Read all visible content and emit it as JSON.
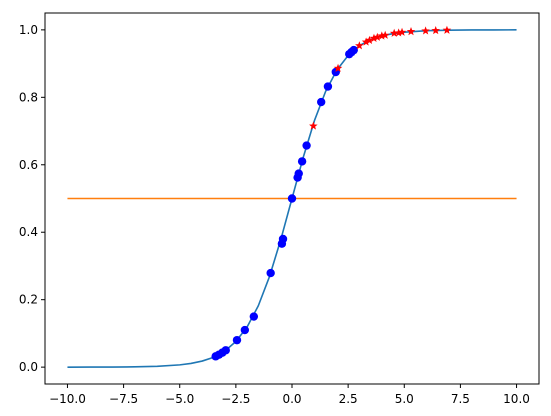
{
  "chart_data": {
    "type": "line",
    "title": "",
    "xlabel": "",
    "ylabel": "",
    "xlim": [
      -11.0,
      11.0
    ],
    "ylim": [
      -0.05,
      1.05
    ],
    "x_ticks": [
      -10.0,
      -7.5,
      -5.0,
      -2.5,
      0.0,
      2.5,
      5.0,
      7.5,
      10.0
    ],
    "x_tick_labels": [
      "−10.0",
      "−7.5",
      "−5.0",
      "−2.5",
      "0.0",
      "2.5",
      "5.0",
      "7.5",
      "10.0"
    ],
    "y_ticks": [
      0.0,
      0.2,
      0.4,
      0.6,
      0.8,
      1.0
    ],
    "y_tick_labels": [
      "0.0",
      "0.2",
      "0.4",
      "0.6",
      "0.8",
      "1.0"
    ],
    "grid": false,
    "legend": "none",
    "series": [
      {
        "kind": "line",
        "color": "#1f77b4",
        "x": [
          -10,
          -9,
          -8,
          -7,
          -6,
          -5,
          -4.5,
          -4,
          -3.5,
          -3,
          -2.5,
          -2,
          -1.5,
          -1,
          -0.5,
          0,
          0.5,
          1,
          1.5,
          2,
          2.5,
          3,
          3.5,
          4,
          4.5,
          5,
          6,
          7,
          8,
          9,
          10
        ],
        "y": [
          0.0,
          0.0001,
          0.0003,
          0.0009,
          0.0025,
          0.0067,
          0.011,
          0.018,
          0.029,
          0.047,
          0.076,
          0.119,
          0.182,
          0.269,
          0.378,
          0.5,
          0.622,
          0.731,
          0.818,
          0.881,
          0.924,
          0.953,
          0.971,
          0.982,
          0.989,
          0.993,
          0.9975,
          0.9991,
          0.9997,
          0.9999,
          1.0
        ]
      },
      {
        "kind": "line",
        "color": "#ff7f0e",
        "x": [
          -10,
          10
        ],
        "y": [
          0.5,
          0.5
        ]
      },
      {
        "kind": "scatter",
        "marker": "circle",
        "color": "#0000ff",
        "x": [
          -3.4,
          -3.25,
          -3.1,
          -2.95,
          -2.45,
          -2.1,
          -1.7,
          -0.95,
          -0.45,
          -0.4,
          0.0,
          0.25,
          0.3,
          0.45,
          0.65,
          1.3,
          1.6,
          1.95,
          2.55,
          2.65,
          2.75
        ],
        "y": [
          0.032,
          0.037,
          0.043,
          0.05,
          0.08,
          0.11,
          0.15,
          0.279,
          0.366,
          0.38,
          0.5,
          0.562,
          0.574,
          0.61,
          0.657,
          0.786,
          0.832,
          0.875,
          0.928,
          0.934,
          0.94
        ]
      },
      {
        "kind": "scatter",
        "marker": "star",
        "color": "#ff0000",
        "x": [
          0.95,
          2.05,
          3.0,
          3.3,
          3.45,
          3.65,
          3.8,
          4.0,
          4.15,
          4.55,
          4.75,
          4.9,
          5.3,
          5.95,
          6.4,
          6.9
        ],
        "y": [
          0.715,
          0.886,
          0.953,
          0.964,
          0.969,
          0.975,
          0.978,
          0.982,
          0.984,
          0.99,
          0.991,
          0.993,
          0.995,
          0.997,
          0.998,
          0.999
        ]
      }
    ]
  }
}
